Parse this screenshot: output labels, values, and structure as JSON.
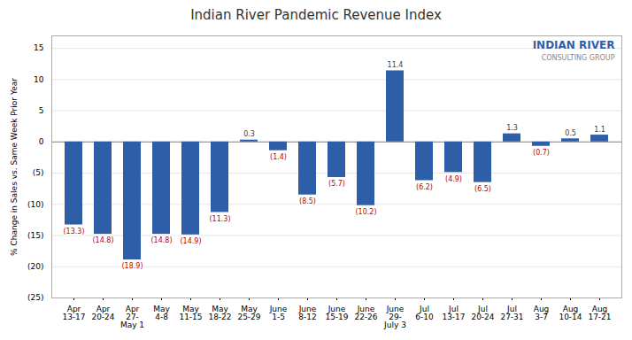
{
  "chart_data": {
    "type": "bar",
    "title": "Indian River Pandemic Revenue Index",
    "ylabel": "% Change in Sales vs. Same Week Prior Year",
    "categories": [
      "Apr\n13-17",
      "Apr\n20-24",
      "Apr\n27-\nMay 1",
      "May\n4-8",
      "May\n11-15",
      "May\n18-22",
      "May\n25-29",
      "June\n1-5",
      "June\n8-12",
      "June\n15-19",
      "June\n22-26",
      "June\n29-\nJuly 3",
      "Jul\n6-10",
      "Jul\n13-17",
      "Jul\n20-24",
      "Jul\n27-31",
      "Aug\n3-7",
      "Aug\n10-14",
      "Aug\n17-21"
    ],
    "values": [
      -13.3,
      -14.8,
      -18.9,
      -14.8,
      -14.9,
      -11.3,
      0.3,
      -1.4,
      -8.5,
      -5.7,
      -10.2,
      11.4,
      -6.2,
      -4.9,
      -6.5,
      1.3,
      -0.7,
      0.5,
      1.1
    ],
    "value_labels": [
      "(13.3)",
      "(14.8)",
      "(18.9)",
      "(14.8)",
      "(14.9)",
      "(11.3)",
      "0.3",
      "(1.4)",
      "(8.5)",
      "(5.7)",
      "(10.2)",
      "11.4",
      "(6.2)",
      "(4.9)",
      "(6.5)",
      "1.3",
      "(0.7)",
      "0.5",
      "1.1"
    ],
    "data_labels": true,
    "color": "#2E5EA8",
    "ylim": [
      -25,
      17
    ],
    "yticks": [
      {
        "value": -25,
        "label": "(25)"
      },
      {
        "value": -20,
        "label": "(20)"
      },
      {
        "value": -15,
        "label": "(15)"
      },
      {
        "value": -10,
        "label": "(10)"
      },
      {
        "value": -5,
        "label": "(5)"
      },
      0,
      5,
      10,
      15
    ],
    "grid": true,
    "annotations": [
      "INDIAN RIVER",
      "CONSULTING GROUP"
    ]
  }
}
